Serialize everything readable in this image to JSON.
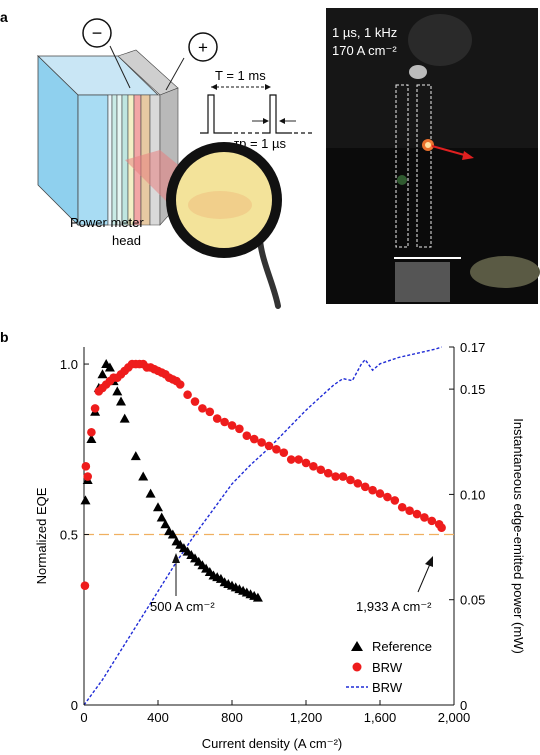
{
  "panel_a": {
    "label": "a",
    "minus_sign": "−",
    "plus_sign": "+",
    "period_label": "T = 1 ms",
    "pulse_label": "τp = 1 µs",
    "power_meter_line1": "Power meter",
    "power_meter_line2": "head",
    "photo_line1": "1 µs, 1 kHz",
    "photo_line2": "170 A cm⁻²"
  },
  "panel_b": {
    "label": "b",
    "annotation_left": "500 A cm⁻²",
    "annotation_right": "1,933 A cm⁻²"
  },
  "colors": {
    "reference": "#000000",
    "brw_points": "#ee1c1c",
    "brw_line": "#1f2bd6",
    "guide_line": "#f0b060"
  },
  "chart_data": {
    "type": "scatter",
    "xlabel": "Current density (A cm⁻²)",
    "ylabel": "Normalized EQE",
    "y2label": "Instantaneous edge-emitted power (mW)",
    "xlim": [
      0,
      2000
    ],
    "ylim": [
      0,
      1.05
    ],
    "y2lim": [
      0,
      0.17
    ],
    "x_ticks": [
      0,
      400,
      800,
      1200,
      1600,
      2000
    ],
    "x_tick_labels": [
      "0",
      "400",
      "800",
      "1,200",
      "1,600",
      "2,000"
    ],
    "y_ticks": [
      0,
      0.5,
      1.0
    ],
    "y_tick_labels": [
      "0",
      "0.5",
      "1.0"
    ],
    "y2_ticks": [
      0,
      0.05,
      0.1,
      0.15,
      0.17
    ],
    "y2_tick_labels": [
      "0",
      "0.05",
      "0.10",
      "0.15",
      "0.17"
    ],
    "guide_y": 0.5,
    "legend_position": "bottom-right",
    "series": [
      {
        "name": "Reference",
        "marker": "triangle",
        "axis": "left",
        "x": [
          8,
          20,
          40,
          60,
          80,
          100,
          120,
          140,
          160,
          180,
          200,
          220,
          280,
          320,
          360,
          400,
          420,
          440,
          460,
          480,
          500,
          520,
          540,
          560,
          580,
          600,
          620,
          640,
          660,
          680,
          700,
          720,
          740,
          760,
          780,
          800,
          820,
          840,
          860,
          880,
          900,
          920,
          940
        ],
        "values": [
          0.6,
          0.66,
          0.78,
          0.86,
          0.93,
          0.97,
          1.0,
          0.99,
          0.95,
          0.92,
          0.89,
          0.84,
          0.73,
          0.67,
          0.62,
          0.58,
          0.55,
          0.53,
          0.51,
          0.5,
          0.48,
          0.47,
          0.46,
          0.45,
          0.44,
          0.43,
          0.42,
          0.41,
          0.4,
          0.39,
          0.38,
          0.375,
          0.37,
          0.36,
          0.355,
          0.35,
          0.345,
          0.34,
          0.335,
          0.33,
          0.325,
          0.32,
          0.315
        ]
      },
      {
        "name": "BRW",
        "marker": "circle",
        "axis": "left",
        "x": [
          5,
          10,
          20,
          40,
          60,
          80,
          100,
          120,
          140,
          160,
          180,
          200,
          220,
          240,
          260,
          280,
          300,
          320,
          340,
          360,
          380,
          400,
          420,
          440,
          460,
          480,
          500,
          520,
          560,
          600,
          640,
          680,
          720,
          760,
          800,
          840,
          880,
          920,
          960,
          1000,
          1040,
          1080,
          1120,
          1160,
          1200,
          1240,
          1280,
          1320,
          1360,
          1400,
          1440,
          1480,
          1520,
          1560,
          1600,
          1640,
          1680,
          1720,
          1760,
          1800,
          1840,
          1880,
          1920,
          1933
        ],
        "values": [
          0.35,
          0.7,
          0.67,
          0.8,
          0.87,
          0.92,
          0.93,
          0.94,
          0.95,
          0.96,
          0.96,
          0.97,
          0.98,
          0.99,
          1.0,
          1.0,
          1.0,
          1.0,
          0.99,
          0.99,
          0.985,
          0.98,
          0.975,
          0.97,
          0.96,
          0.955,
          0.95,
          0.94,
          0.91,
          0.89,
          0.87,
          0.86,
          0.84,
          0.83,
          0.82,
          0.81,
          0.79,
          0.78,
          0.77,
          0.76,
          0.75,
          0.74,
          0.72,
          0.72,
          0.71,
          0.7,
          0.69,
          0.68,
          0.67,
          0.67,
          0.66,
          0.65,
          0.64,
          0.63,
          0.62,
          0.61,
          0.6,
          0.58,
          0.57,
          0.56,
          0.55,
          0.54,
          0.53,
          0.52
        ]
      },
      {
        "name": "BRW",
        "marker": "dashed-line",
        "axis": "right",
        "x": [
          0,
          100,
          200,
          300,
          400,
          500,
          600,
          700,
          800,
          900,
          1000,
          1100,
          1200,
          1300,
          1350,
          1400,
          1450,
          1500,
          1520,
          1560,
          1600,
          1700,
          1800,
          1900,
          1933
        ],
        "values": [
          0.0,
          0.012,
          0.026,
          0.04,
          0.054,
          0.068,
          0.081,
          0.093,
          0.105,
          0.114,
          0.122,
          0.131,
          0.14,
          0.148,
          0.152,
          0.155,
          0.154,
          0.162,
          0.164,
          0.159,
          0.162,
          0.165,
          0.167,
          0.169,
          0.17
        ]
      }
    ]
  }
}
